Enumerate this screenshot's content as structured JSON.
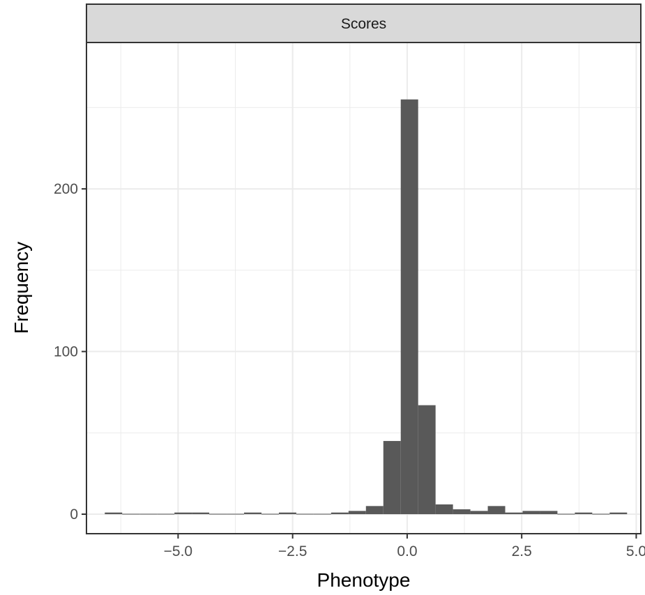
{
  "chart_data": {
    "type": "bar",
    "facet_label": "Scores",
    "xlabel": "Phenotype",
    "ylabel": "Frequency",
    "xlim": [
      -7.0,
      5.1
    ],
    "ylim": [
      -12,
      290
    ],
    "x_ticks": [
      -5.0,
      -2.5,
      0.0,
      2.5,
      5.0
    ],
    "x_tick_labels": [
      "−5.0",
      "−2.5",
      "0.0",
      "2.5",
      "5.0"
    ],
    "y_ticks": [
      0,
      100,
      200
    ],
    "y_tick_labels": [
      "0",
      "100",
      "200"
    ],
    "grid": true,
    "bin_width": 0.38,
    "bin_starts": [
      -6.6,
      -6.22,
      -5.84,
      -5.46,
      -5.08,
      -4.7,
      -4.32,
      -3.94,
      -3.56,
      -3.18,
      -2.8,
      -2.42,
      -2.04,
      -1.66,
      -1.28,
      -0.9,
      -0.52,
      -0.14,
      0.24,
      0.62,
      1.0,
      1.38,
      1.76,
      2.14,
      2.52,
      2.9,
      3.28,
      3.66,
      4.04,
      4.42
    ],
    "counts": [
      1,
      0,
      0,
      0,
      1,
      1,
      0,
      0,
      1,
      0,
      1,
      0,
      0,
      1,
      2,
      5,
      45,
      255,
      67,
      6,
      3,
      2,
      5,
      1,
      2,
      2,
      0,
      1,
      0,
      1
    ],
    "bar_color": "#595959",
    "panel_border_color": "#333333",
    "strip_fill": "#d9d9d9",
    "grid_color": "#ebebeb"
  }
}
